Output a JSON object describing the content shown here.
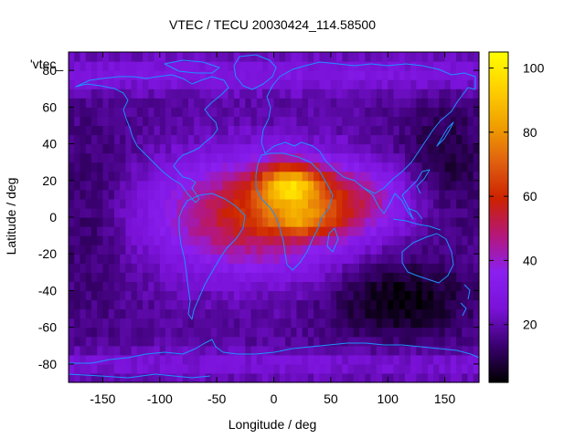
{
  "chart_data": {
    "type": "heatmap",
    "title": "VTEC / TECU 20030424_114.58500",
    "xlabel": "Longitude / deg",
    "ylabel": "Latitude / deg",
    "xlim": [
      -180,
      180
    ],
    "ylim": [
      -90,
      90
    ],
    "x_ticks": [
      -150,
      -100,
      -50,
      0,
      50,
      100,
      150
    ],
    "x_tick_labels": [
      "-150",
      "-100",
      "-50",
      "0",
      "50",
      "100",
      "150"
    ],
    "y_ticks": [
      -80,
      -60,
      -40,
      -20,
      0,
      20,
      40,
      60,
      80
    ],
    "y_tick_labels": [
      "-80",
      "-60",
      "-40",
      "-20",
      "0",
      "20",
      "40",
      "60",
      "80"
    ],
    "legend_entry": "'vtec_",
    "colorbar": {
      "range": [
        2,
        105
      ],
      "ticks": [
        20,
        40,
        60,
        80,
        100
      ],
      "tick_labels": [
        "20",
        "40",
        "60",
        "80",
        "100"
      ],
      "palette": [
        "#000000",
        "#3a0070",
        "#7a12d8",
        "#8a1ff0",
        "#b5177a",
        "#cc2200",
        "#e06010",
        "#f0a000",
        "#ffd000",
        "#ffff00"
      ]
    },
    "grid_resolution_deg": [
      5,
      5
    ],
    "features": {
      "background_level": 18,
      "ionization_peak": {
        "lon": 15,
        "lat": 18,
        "peak_value": 104
      },
      "secondary_peak": {
        "lon": 25,
        "lat": -2,
        "value": 92
      },
      "polar_minimum": {
        "lon": 110,
        "lat": -45,
        "value": 3
      }
    }
  }
}
